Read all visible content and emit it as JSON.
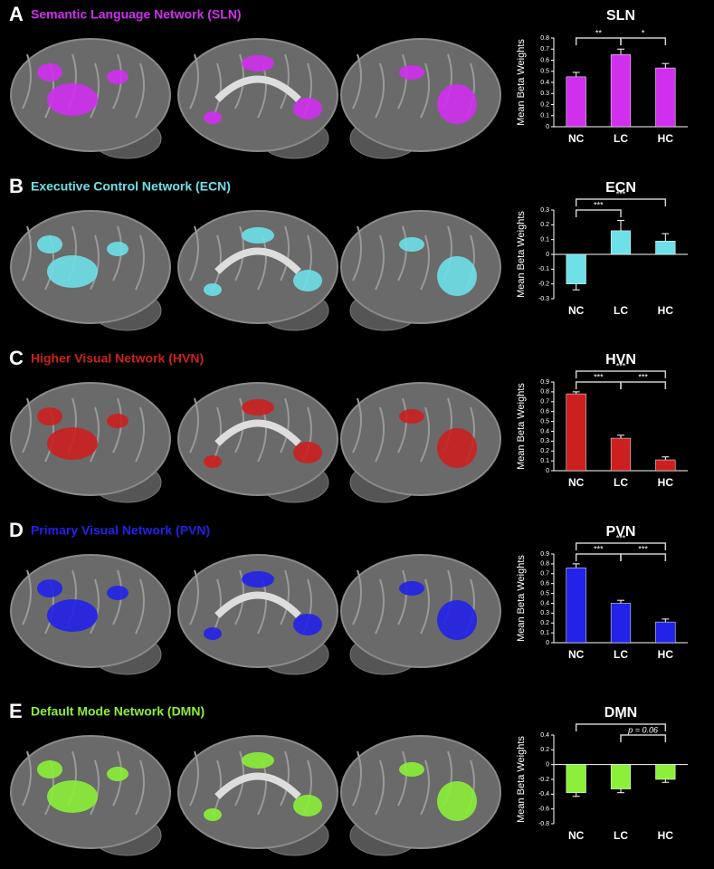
{
  "chart_data": [
    {
      "type": "bar",
      "panel_label": "A",
      "panel_title": "Semantic Language Network (SLN)",
      "title": "SLN",
      "ylabel": "Mean Beta Weights",
      "color": "#d030ee",
      "categories": [
        "NC",
        "LC",
        "HC"
      ],
      "values": [
        0.45,
        0.65,
        0.53
      ],
      "errors": [
        0.04,
        0.05,
        0.04
      ],
      "ylim": [
        0,
        0.8
      ],
      "yticks": [
        0,
        0.1,
        0.2,
        0.3,
        0.4,
        0.5,
        0.6,
        0.7,
        0.8
      ],
      "annotations": [
        {
          "text": "**",
          "between": [
            0,
            1
          ]
        },
        {
          "text": "*",
          "between": [
            1,
            2
          ]
        }
      ]
    },
    {
      "type": "bar",
      "panel_label": "B",
      "panel_title": "Executive Control Network (ECN)",
      "title": "ECN",
      "ylabel": "Mean Beta Weights",
      "color": "#6ee0e8",
      "categories": [
        "NC",
        "LC",
        "HC"
      ],
      "values": [
        -0.2,
        0.16,
        0.09
      ],
      "errors": [
        0.04,
        0.07,
        0.05
      ],
      "ylim": [
        -0.3,
        0.3
      ],
      "yticks": [
        -0.3,
        -0.2,
        -0.1,
        0,
        0.1,
        0.2,
        0.3
      ],
      "annotations": [
        {
          "text": "***",
          "between": [
            0,
            1
          ]
        },
        {
          "text": "***",
          "between": [
            0,
            2
          ]
        }
      ]
    },
    {
      "type": "bar",
      "panel_label": "C",
      "panel_title": "Higher Visual Network (HVN)",
      "title": "HVN",
      "ylabel": "Mean Beta Weights",
      "color": "#cc2020",
      "categories": [
        "NC",
        "LC",
        "HC"
      ],
      "values": [
        0.78,
        0.33,
        0.11
      ],
      "errors": [
        0.02,
        0.03,
        0.03
      ],
      "ylim": [
        0,
        0.9
      ],
      "yticks": [
        0,
        0.1,
        0.2,
        0.3,
        0.4,
        0.5,
        0.6,
        0.7,
        0.8,
        0.9
      ],
      "annotations": [
        {
          "text": "***",
          "between": [
            0,
            1
          ]
        },
        {
          "text": "***",
          "between": [
            1,
            2
          ]
        },
        {
          "text": "***",
          "between": [
            0,
            2
          ]
        }
      ]
    },
    {
      "type": "bar",
      "panel_label": "D",
      "panel_title": "Primary Visual Network (PVN)",
      "title": "PVN",
      "ylabel": "Mean Beta Weights",
      "color": "#2222e8",
      "categories": [
        "NC",
        "LC",
        "HC"
      ],
      "values": [
        0.76,
        0.4,
        0.21
      ],
      "errors": [
        0.04,
        0.03,
        0.03
      ],
      "ylim": [
        0,
        0.9
      ],
      "yticks": [
        0,
        0.1,
        0.2,
        0.3,
        0.4,
        0.5,
        0.6,
        0.7,
        0.8,
        0.9
      ],
      "annotations": [
        {
          "text": "***",
          "between": [
            0,
            1
          ]
        },
        {
          "text": "***",
          "between": [
            1,
            2
          ]
        },
        {
          "text": "***",
          "between": [
            0,
            2
          ]
        }
      ]
    },
    {
      "type": "bar",
      "panel_label": "E",
      "panel_title": "Default Mode Network (DMN)",
      "title": "DMN",
      "ylabel": "Mean Beta Weights",
      "color": "#8cf03a",
      "categories": [
        "NC",
        "LC",
        "HC"
      ],
      "values": [
        -0.38,
        -0.33,
        -0.2
      ],
      "errors": [
        0.05,
        0.05,
        0.04
      ],
      "ylim": [
        -0.8,
        0.4
      ],
      "yticks": [
        -0.8,
        -0.6,
        -0.4,
        -0.2,
        0,
        0.2,
        0.4
      ],
      "annotations": [
        {
          "text": "*",
          "between": [
            0,
            2
          ]
        },
        {
          "text": "p = 0.06",
          "between": [
            1,
            2
          ]
        }
      ]
    }
  ]
}
